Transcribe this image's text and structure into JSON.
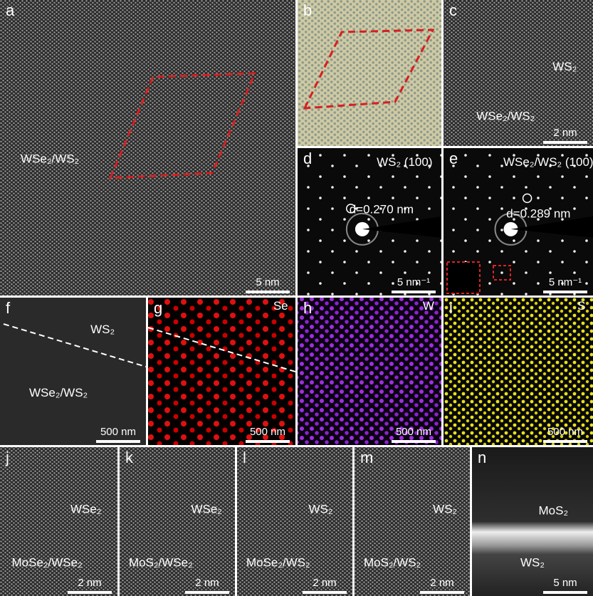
{
  "panels": [
    {
      "letter": "a",
      "labels": [
        "WSe₂/WS₂"
      ],
      "scale_bar": "5 nm"
    },
    {
      "letter": "b",
      "labels": [],
      "scale_bar": null
    },
    {
      "letter": "c",
      "labels": [
        "WS₂",
        "WSe₂/WS₂"
      ],
      "scale_bar": "2 nm"
    },
    {
      "letter": "d",
      "labels": [
        "WS₂ (100)",
        "d=0.270 nm"
      ],
      "scale_bar": "5 nm⁻¹"
    },
    {
      "letter": "e",
      "labels": [
        "WSe₂/WS₂ (100)",
        "d=0.289 nm"
      ],
      "scale_bar": "5 nm⁻¹"
    },
    {
      "letter": "f",
      "labels": [
        "WS₂",
        "WSe₂/WS₂"
      ],
      "scale_bar": "500 nm"
    },
    {
      "letter": "g",
      "labels": [
        "Se"
      ],
      "scale_bar": "500 nm"
    },
    {
      "letter": "h",
      "labels": [
        "W"
      ],
      "scale_bar": "500 nm"
    },
    {
      "letter": "i",
      "labels": [
        "S"
      ],
      "scale_bar": "500 nm"
    },
    {
      "letter": "j",
      "labels": [
        "WSe₂",
        "MoSe₂/WSe₂"
      ],
      "scale_bar": "2 nm"
    },
    {
      "letter": "k",
      "labels": [
        "WSe₂",
        "MoS₂/WSe₂"
      ],
      "scale_bar": "2 nm"
    },
    {
      "letter": "l",
      "labels": [
        "WS₂",
        "MoSe₂/WS₂"
      ],
      "scale_bar": "2 nm"
    },
    {
      "letter": "m",
      "labels": [
        "WS₂",
        "MoS₂/WS₂"
      ],
      "scale_bar": "2 nm"
    },
    {
      "letter": "n",
      "labels": [
        "MoS₂",
        "WS₂"
      ],
      "scale_bar": "5 nm"
    }
  ]
}
